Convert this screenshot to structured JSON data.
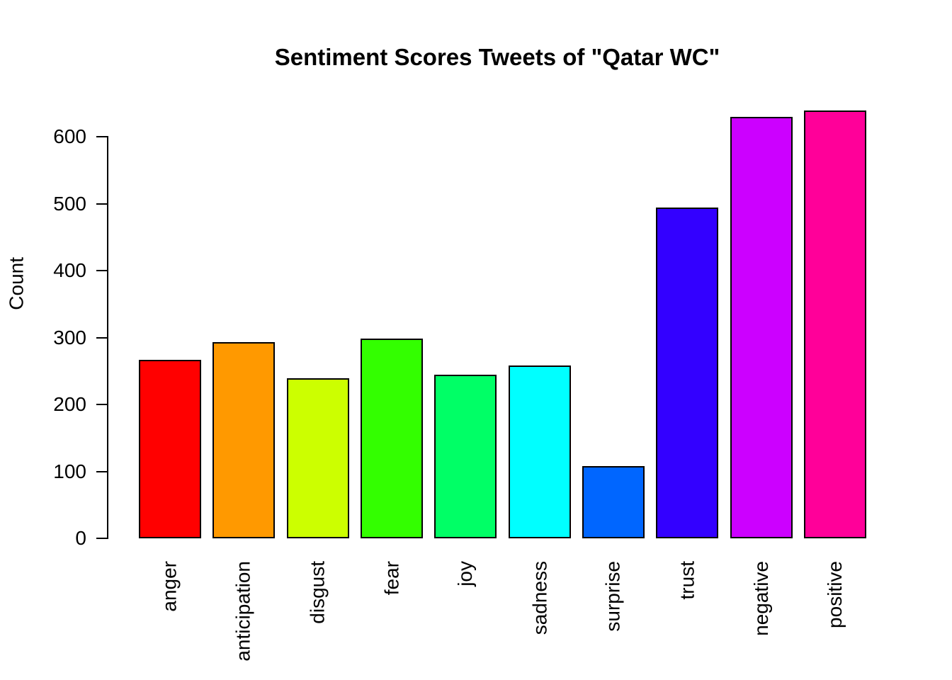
{
  "title": "Sentiment Scores Tweets of \"Qatar WC\"",
  "chart_data": {
    "type": "bar",
    "title": "Sentiment Scores Tweets of \"Qatar WC\"",
    "xlabel": "",
    "ylabel": "Count",
    "categories": [
      "anger",
      "anticipation",
      "disgust",
      "fear",
      "joy",
      "sadness",
      "surprise",
      "trust",
      "negative",
      "positive"
    ],
    "values": [
      266,
      292,
      238,
      298,
      244,
      257,
      107,
      493,
      629,
      638
    ],
    "bar_colors": [
      "#FF0000",
      "#FF9900",
      "#CCFF00",
      "#33FF00",
      "#00FF66",
      "#00FFFF",
      "#0066FF",
      "#3300FF",
      "#CC00FF",
      "#FF0099"
    ],
    "bar_border_color": "#000000",
    "ylim": [
      0,
      600
    ],
    "yticks": [
      0,
      100,
      200,
      300,
      400,
      500,
      600
    ],
    "grid": false,
    "legend": "none",
    "background_color": "#FFFFFF",
    "axis_color": "#000000",
    "text_color": "#000000"
  }
}
